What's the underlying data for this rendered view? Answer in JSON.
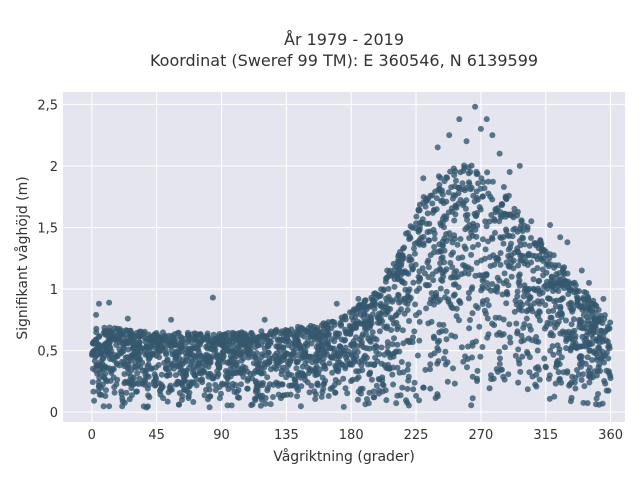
{
  "chart_data": {
    "type": "scatter",
    "title_line1": "År 1979 - 2019",
    "title_line2": "Koordinat (Sweref 99 TM): E 360546, N 6139599",
    "xlabel": "Vågriktning (grader)",
    "ylabel": "Signifikant våghöjd (m)",
    "xlim": [
      -20,
      370
    ],
    "ylim": [
      -0.08,
      2.6
    ],
    "x_ticks": [
      0,
      45,
      90,
      135,
      180,
      225,
      270,
      315,
      360
    ],
    "x_tick_labels": [
      "0",
      "45",
      "90",
      "135",
      "180",
      "225",
      "270",
      "315",
      "360"
    ],
    "y_ticks": [
      0,
      0.5,
      1,
      1.5,
      2,
      2.5
    ],
    "y_tick_labels": [
      "0",
      "0,5",
      "1",
      "1,5",
      "2",
      "2,5"
    ],
    "grid": true,
    "background_color": "#e5e5ef",
    "marker_color": "#34586e",
    "envelope": {
      "x": [
        0,
        20,
        45,
        90,
        135,
        160,
        180,
        200,
        215,
        230,
        245,
        255,
        265,
        275,
        285,
        300,
        315,
        330,
        345,
        360
      ],
      "y_max": [
        0.7,
        0.68,
        0.65,
        0.64,
        0.68,
        0.72,
        0.82,
        1.0,
        1.35,
        1.75,
        1.98,
        2.02,
        2.0,
        1.95,
        1.85,
        1.55,
        1.35,
        1.15,
        0.95,
        0.75
      ]
    },
    "outliers": [
      {
        "x": 5,
        "y": 0.88
      },
      {
        "x": 12,
        "y": 0.89
      },
      {
        "x": 3,
        "y": 0.79
      },
      {
        "x": 25,
        "y": 0.76
      },
      {
        "x": 55,
        "y": 0.75
      },
      {
        "x": 84,
        "y": 0.93
      },
      {
        "x": 120,
        "y": 0.75
      },
      {
        "x": 170,
        "y": 0.88
      },
      {
        "x": 185,
        "y": 0.92
      },
      {
        "x": 205,
        "y": 1.15
      },
      {
        "x": 218,
        "y": 1.45
      },
      {
        "x": 230,
        "y": 1.9
      },
      {
        "x": 240,
        "y": 2.15
      },
      {
        "x": 248,
        "y": 2.25
      },
      {
        "x": 255,
        "y": 2.38
      },
      {
        "x": 260,
        "y": 2.2
      },
      {
        "x": 266,
        "y": 2.48
      },
      {
        "x": 270,
        "y": 2.3
      },
      {
        "x": 274,
        "y": 2.38
      },
      {
        "x": 278,
        "y": 2.25
      },
      {
        "x": 283,
        "y": 2.1
      },
      {
        "x": 290,
        "y": 1.95
      },
      {
        "x": 297,
        "y": 2.0
      },
      {
        "x": 305,
        "y": 1.55
      },
      {
        "x": 318,
        "y": 1.52
      },
      {
        "x": 325,
        "y": 1.42
      },
      {
        "x": 330,
        "y": 1.38
      },
      {
        "x": 340,
        "y": 1.15
      },
      {
        "x": 345,
        "y": 1.05
      },
      {
        "x": 355,
        "y": 0.92
      }
    ]
  }
}
